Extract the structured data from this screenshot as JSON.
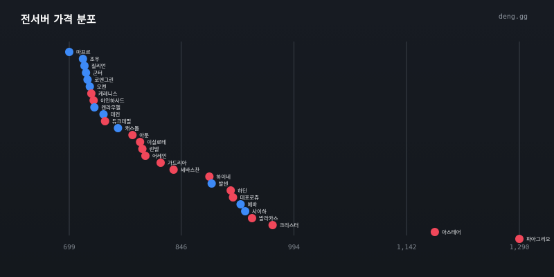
{
  "header": {
    "title": "전서버 가격 분포",
    "brand": "deng.gg"
  },
  "colors": {
    "background": "#15191f",
    "blue": "#3d8af7",
    "red": "#f0475a",
    "grid": "#3a4048"
  },
  "chart_data": {
    "type": "scatter",
    "title": "전서버 가격 분포",
    "xlabel": "",
    "ylabel": "",
    "xlim": [
      699,
      1290
    ],
    "xticks": [
      699,
      846,
      994,
      1142,
      1290
    ],
    "xtick_labels": [
      "699",
      "846",
      "994",
      "1,142",
      "1,290"
    ],
    "grid": true,
    "points": [
      {
        "label": "마프르",
        "x": 699,
        "color": "blue"
      },
      {
        "label": "조우",
        "x": 717,
        "color": "blue"
      },
      {
        "label": "질리언",
        "x": 719,
        "color": "blue"
      },
      {
        "label": "군터",
        "x": 721,
        "color": "blue"
      },
      {
        "label": "로엔그린",
        "x": 723,
        "color": "blue"
      },
      {
        "label": "오멘",
        "x": 726,
        "color": "blue"
      },
      {
        "label": "케레니스",
        "x": 728,
        "color": "red"
      },
      {
        "label": "아인하사드",
        "x": 731,
        "color": "red"
      },
      {
        "label": "켄라우헬",
        "x": 732,
        "color": "blue"
      },
      {
        "label": "데컨",
        "x": 744,
        "color": "blue"
      },
      {
        "label": "듀크데필",
        "x": 746,
        "color": "red"
      },
      {
        "label": "캐스톨",
        "x": 763,
        "color": "blue"
      },
      {
        "label": "아툰",
        "x": 782,
        "color": "red"
      },
      {
        "label": "이실로테",
        "x": 792,
        "color": "red"
      },
      {
        "label": "린델",
        "x": 795,
        "color": "red"
      },
      {
        "label": "어레인",
        "x": 799,
        "color": "red"
      },
      {
        "label": "가드리아",
        "x": 819,
        "color": "red"
      },
      {
        "label": "세바스찬",
        "x": 836,
        "color": "red"
      },
      {
        "label": "하이네",
        "x": 883,
        "color": "red"
      },
      {
        "label": "발센",
        "x": 886,
        "color": "blue"
      },
      {
        "label": "하딘",
        "x": 911,
        "color": "red"
      },
      {
        "label": "데포로쥬",
        "x": 914,
        "color": "red"
      },
      {
        "label": "에바",
        "x": 924,
        "color": "blue"
      },
      {
        "label": "사이하",
        "x": 930,
        "color": "blue"
      },
      {
        "label": "발라카스",
        "x": 939,
        "color": "red"
      },
      {
        "label": "크리스터",
        "x": 966,
        "color": "red"
      },
      {
        "label": "아스테어",
        "x": 1179,
        "color": "red"
      },
      {
        "label": "파아그리오",
        "x": 1290,
        "color": "red"
      }
    ]
  }
}
